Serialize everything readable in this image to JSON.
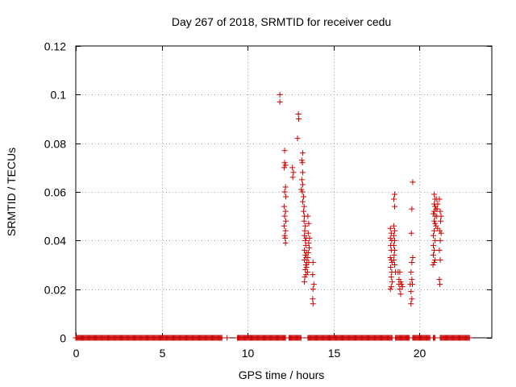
{
  "colors": {
    "series": "#cc0000",
    "grid": "#a0a0a0",
    "axis": "#000000",
    "background": "#ffffff"
  },
  "chart_data": {
    "type": "scatter",
    "title": "Day 267 of 2018, SRMTID for receiver cedu",
    "xlabel": "GPS time / hours",
    "ylabel": "SRMTID / TECUs",
    "xlim": [
      0,
      24.2
    ],
    "ylim": [
      0,
      0.12
    ],
    "xticks": [
      0,
      5,
      10,
      15,
      20
    ],
    "xtick_labels": [
      "0",
      "5",
      "10",
      "15",
      "20"
    ],
    "yticks": [
      0,
      0.02,
      0.04,
      0.06,
      0.08,
      0.1,
      0.12
    ],
    "ytick_labels": [
      "0",
      "0.02",
      "0.04",
      "0.06",
      "0.08",
      "0.1",
      "0.12"
    ],
    "grid": true,
    "marker": "+",
    "series": [
      {
        "name": "SRMTID",
        "baseline_zero_ranges": [
          [
            0.0,
            8.5
          ],
          [
            9.4,
            12.2
          ],
          [
            12.4,
            13.1
          ],
          [
            13.5,
            18.4
          ],
          [
            18.6,
            19.4
          ],
          [
            19.6,
            20.6
          ],
          [
            20.8,
            20.9
          ],
          [
            21.2,
            22.9
          ]
        ],
        "baseline_isolated_x": [
          8.8
        ],
        "points": [
          [
            11.87,
            0.1
          ],
          [
            11.87,
            0.097
          ],
          [
            12.15,
            0.077
          ],
          [
            12.15,
            0.072
          ],
          [
            12.2,
            0.071
          ],
          [
            12.12,
            0.07
          ],
          [
            12.2,
            0.062
          ],
          [
            12.15,
            0.06
          ],
          [
            12.22,
            0.058
          ],
          [
            12.12,
            0.054
          ],
          [
            12.2,
            0.052
          ],
          [
            12.15,
            0.05
          ],
          [
            12.22,
            0.048
          ],
          [
            12.12,
            0.046
          ],
          [
            12.2,
            0.044
          ],
          [
            12.15,
            0.042
          ],
          [
            12.18,
            0.041
          ],
          [
            12.2,
            0.039
          ],
          [
            12.62,
            0.066
          ],
          [
            12.66,
            0.068
          ],
          [
            12.6,
            0.07
          ],
          [
            12.95,
            0.092
          ],
          [
            12.97,
            0.09
          ],
          [
            12.9,
            0.082
          ],
          [
            13.2,
            0.076
          ],
          [
            13.15,
            0.073
          ],
          [
            13.18,
            0.072
          ],
          [
            13.2,
            0.068
          ],
          [
            13.15,
            0.065
          ],
          [
            13.2,
            0.063
          ],
          [
            13.12,
            0.061
          ],
          [
            13.18,
            0.06
          ],
          [
            13.25,
            0.058
          ],
          [
            13.2,
            0.056
          ],
          [
            13.28,
            0.054
          ],
          [
            13.25,
            0.052
          ],
          [
            13.3,
            0.05
          ],
          [
            13.28,
            0.048
          ],
          [
            13.35,
            0.046
          ],
          [
            13.32,
            0.044
          ],
          [
            13.3,
            0.042
          ],
          [
            13.4,
            0.041
          ],
          [
            13.35,
            0.04
          ],
          [
            13.38,
            0.038
          ],
          [
            13.3,
            0.036
          ],
          [
            13.42,
            0.035
          ],
          [
            13.35,
            0.034
          ],
          [
            13.4,
            0.033
          ],
          [
            13.3,
            0.032
          ],
          [
            13.45,
            0.031
          ],
          [
            13.38,
            0.03
          ],
          [
            13.42,
            0.029
          ],
          [
            13.35,
            0.028
          ],
          [
            13.48,
            0.027
          ],
          [
            13.4,
            0.026
          ],
          [
            13.32,
            0.025
          ],
          [
            13.3,
            0.023
          ],
          [
            13.5,
            0.05
          ],
          [
            13.55,
            0.047
          ],
          [
            13.52,
            0.043
          ],
          [
            13.6,
            0.041
          ],
          [
            13.55,
            0.039
          ],
          [
            13.58,
            0.037
          ],
          [
            13.52,
            0.035
          ],
          [
            13.5,
            0.033
          ],
          [
            13.55,
            0.031
          ],
          [
            13.8,
            0.031
          ],
          [
            13.78,
            0.026
          ],
          [
            13.85,
            0.022
          ],
          [
            13.8,
            0.02
          ],
          [
            13.78,
            0.016
          ],
          [
            13.8,
            0.014
          ],
          [
            18.3,
            0.045
          ],
          [
            18.35,
            0.043
          ],
          [
            18.3,
            0.041
          ],
          [
            18.38,
            0.04
          ],
          [
            18.32,
            0.038
          ],
          [
            18.35,
            0.036
          ],
          [
            18.3,
            0.033
          ],
          [
            18.35,
            0.032
          ],
          [
            18.4,
            0.031
          ],
          [
            18.32,
            0.029
          ],
          [
            18.38,
            0.027
          ],
          [
            18.35,
            0.025
          ],
          [
            18.4,
            0.023
          ],
          [
            18.35,
            0.021
          ],
          [
            18.3,
            0.02
          ],
          [
            18.55,
            0.059
          ],
          [
            18.5,
            0.057
          ],
          [
            18.55,
            0.054
          ],
          [
            18.5,
            0.046
          ],
          [
            18.55,
            0.044
          ],
          [
            18.5,
            0.042
          ],
          [
            18.55,
            0.04
          ],
          [
            18.5,
            0.038
          ],
          [
            18.55,
            0.036
          ],
          [
            18.52,
            0.034
          ],
          [
            18.5,
            0.032
          ],
          [
            18.55,
            0.03
          ],
          [
            18.6,
            0.027
          ],
          [
            18.75,
            0.027
          ],
          [
            18.85,
            0.027
          ],
          [
            18.8,
            0.024
          ],
          [
            18.9,
            0.023
          ],
          [
            18.8,
            0.022
          ],
          [
            18.85,
            0.02
          ],
          [
            18.95,
            0.022
          ],
          [
            19.0,
            0.021
          ],
          [
            18.9,
            0.018
          ],
          [
            19.5,
            0.027
          ],
          [
            19.55,
            0.024
          ],
          [
            19.45,
            0.022
          ],
          [
            19.5,
            0.019
          ],
          [
            19.55,
            0.016
          ],
          [
            19.5,
            0.014
          ],
          [
            19.6,
            0.064
          ],
          [
            19.55,
            0.053
          ],
          [
            19.52,
            0.043
          ],
          [
            19.6,
            0.033
          ],
          [
            19.55,
            0.031
          ],
          [
            19.58,
            0.022
          ],
          [
            20.85,
            0.059
          ],
          [
            20.9,
            0.057
          ],
          [
            20.85,
            0.055
          ],
          [
            20.9,
            0.054
          ],
          [
            20.95,
            0.053
          ],
          [
            20.85,
            0.052
          ],
          [
            20.8,
            0.051
          ],
          [
            20.9,
            0.05
          ],
          [
            20.85,
            0.048
          ],
          [
            20.9,
            0.047
          ],
          [
            20.95,
            0.046
          ],
          [
            20.85,
            0.044
          ],
          [
            20.8,
            0.042
          ],
          [
            20.9,
            0.04
          ],
          [
            20.8,
            0.038
          ],
          [
            20.85,
            0.036
          ],
          [
            20.8,
            0.034
          ],
          [
            20.9,
            0.032
          ],
          [
            20.85,
            0.031
          ],
          [
            20.78,
            0.03
          ],
          [
            21.0,
            0.057
          ],
          [
            21.05,
            0.055
          ],
          [
            21.02,
            0.053
          ],
          [
            21.0,
            0.05
          ],
          [
            21.05,
            0.045
          ],
          [
            21.15,
            0.057
          ],
          [
            21.2,
            0.052
          ],
          [
            21.25,
            0.05
          ],
          [
            21.22,
            0.048
          ],
          [
            21.18,
            0.044
          ],
          [
            21.25,
            0.043
          ],
          [
            21.2,
            0.04
          ],
          [
            21.15,
            0.036
          ],
          [
            21.2,
            0.032
          ],
          [
            21.15,
            0.024
          ],
          [
            21.18,
            0.022
          ]
        ]
      }
    ]
  }
}
